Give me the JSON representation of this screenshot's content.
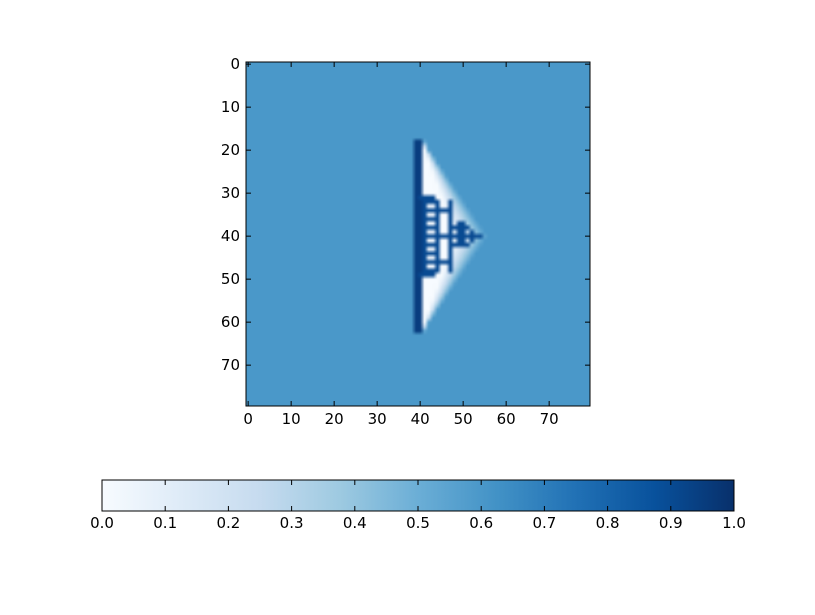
{
  "chart_data": {
    "type": "heatmap",
    "title": "",
    "xlabel": "",
    "ylabel": "",
    "grid": false,
    "colormap": "Blues",
    "background_value": 0.6,
    "image_size": [
      80,
      80
    ],
    "xlim": [
      -0.5,
      79.5
    ],
    "ylim": [
      79.5,
      -0.5
    ],
    "x_ticks": [
      0,
      10,
      20,
      30,
      40,
      50,
      60,
      70
    ],
    "y_ticks": [
      0,
      10,
      20,
      30,
      40,
      50,
      60,
      70
    ],
    "x_tick_labels": [
      "0",
      "10",
      "20",
      "30",
      "40",
      "50",
      "60",
      "70"
    ],
    "y_tick_labels": [
      "0",
      "10",
      "20",
      "30",
      "40",
      "50",
      "60",
      "70"
    ],
    "features": [
      {
        "kind": "light-triangle",
        "base_x": 40,
        "y_range": [
          17,
          63
        ],
        "apex": [
          55,
          40
        ],
        "value": 0.0,
        "edge_value": 0.6
      },
      {
        "kind": "dark-bar",
        "x": 39.5,
        "y_range": [
          18,
          62
        ],
        "value": 0.95
      },
      {
        "kind": "dark-bracket",
        "x_range": [
          40,
          43
        ],
        "y_range": [
          31,
          49
        ],
        "value": 0.9
      },
      {
        "kind": "dark-comb",
        "x_range": [
          42,
          44
        ],
        "y_range": [
          32,
          48
        ],
        "value": 0.9
      },
      {
        "kind": "dark-stem",
        "x": 47,
        "y_range": [
          32,
          48
        ],
        "value": 0.9
      },
      {
        "kind": "dark-arrow",
        "x_range": [
          45,
          54
        ],
        "y_range": [
          37,
          42
        ],
        "value": 0.9
      }
    ],
    "colorbar": {
      "orientation": "horizontal",
      "range": [
        0.0,
        1.0
      ],
      "ticks": [
        0.0,
        0.1,
        0.2,
        0.3,
        0.4,
        0.5,
        0.6,
        0.7,
        0.8,
        0.9,
        1.0
      ],
      "tick_labels": [
        "0.0",
        "0.1",
        "0.2",
        "0.3",
        "0.4",
        "0.5",
        "0.6",
        "0.7",
        "0.8",
        "0.9",
        "1.0"
      ]
    }
  }
}
